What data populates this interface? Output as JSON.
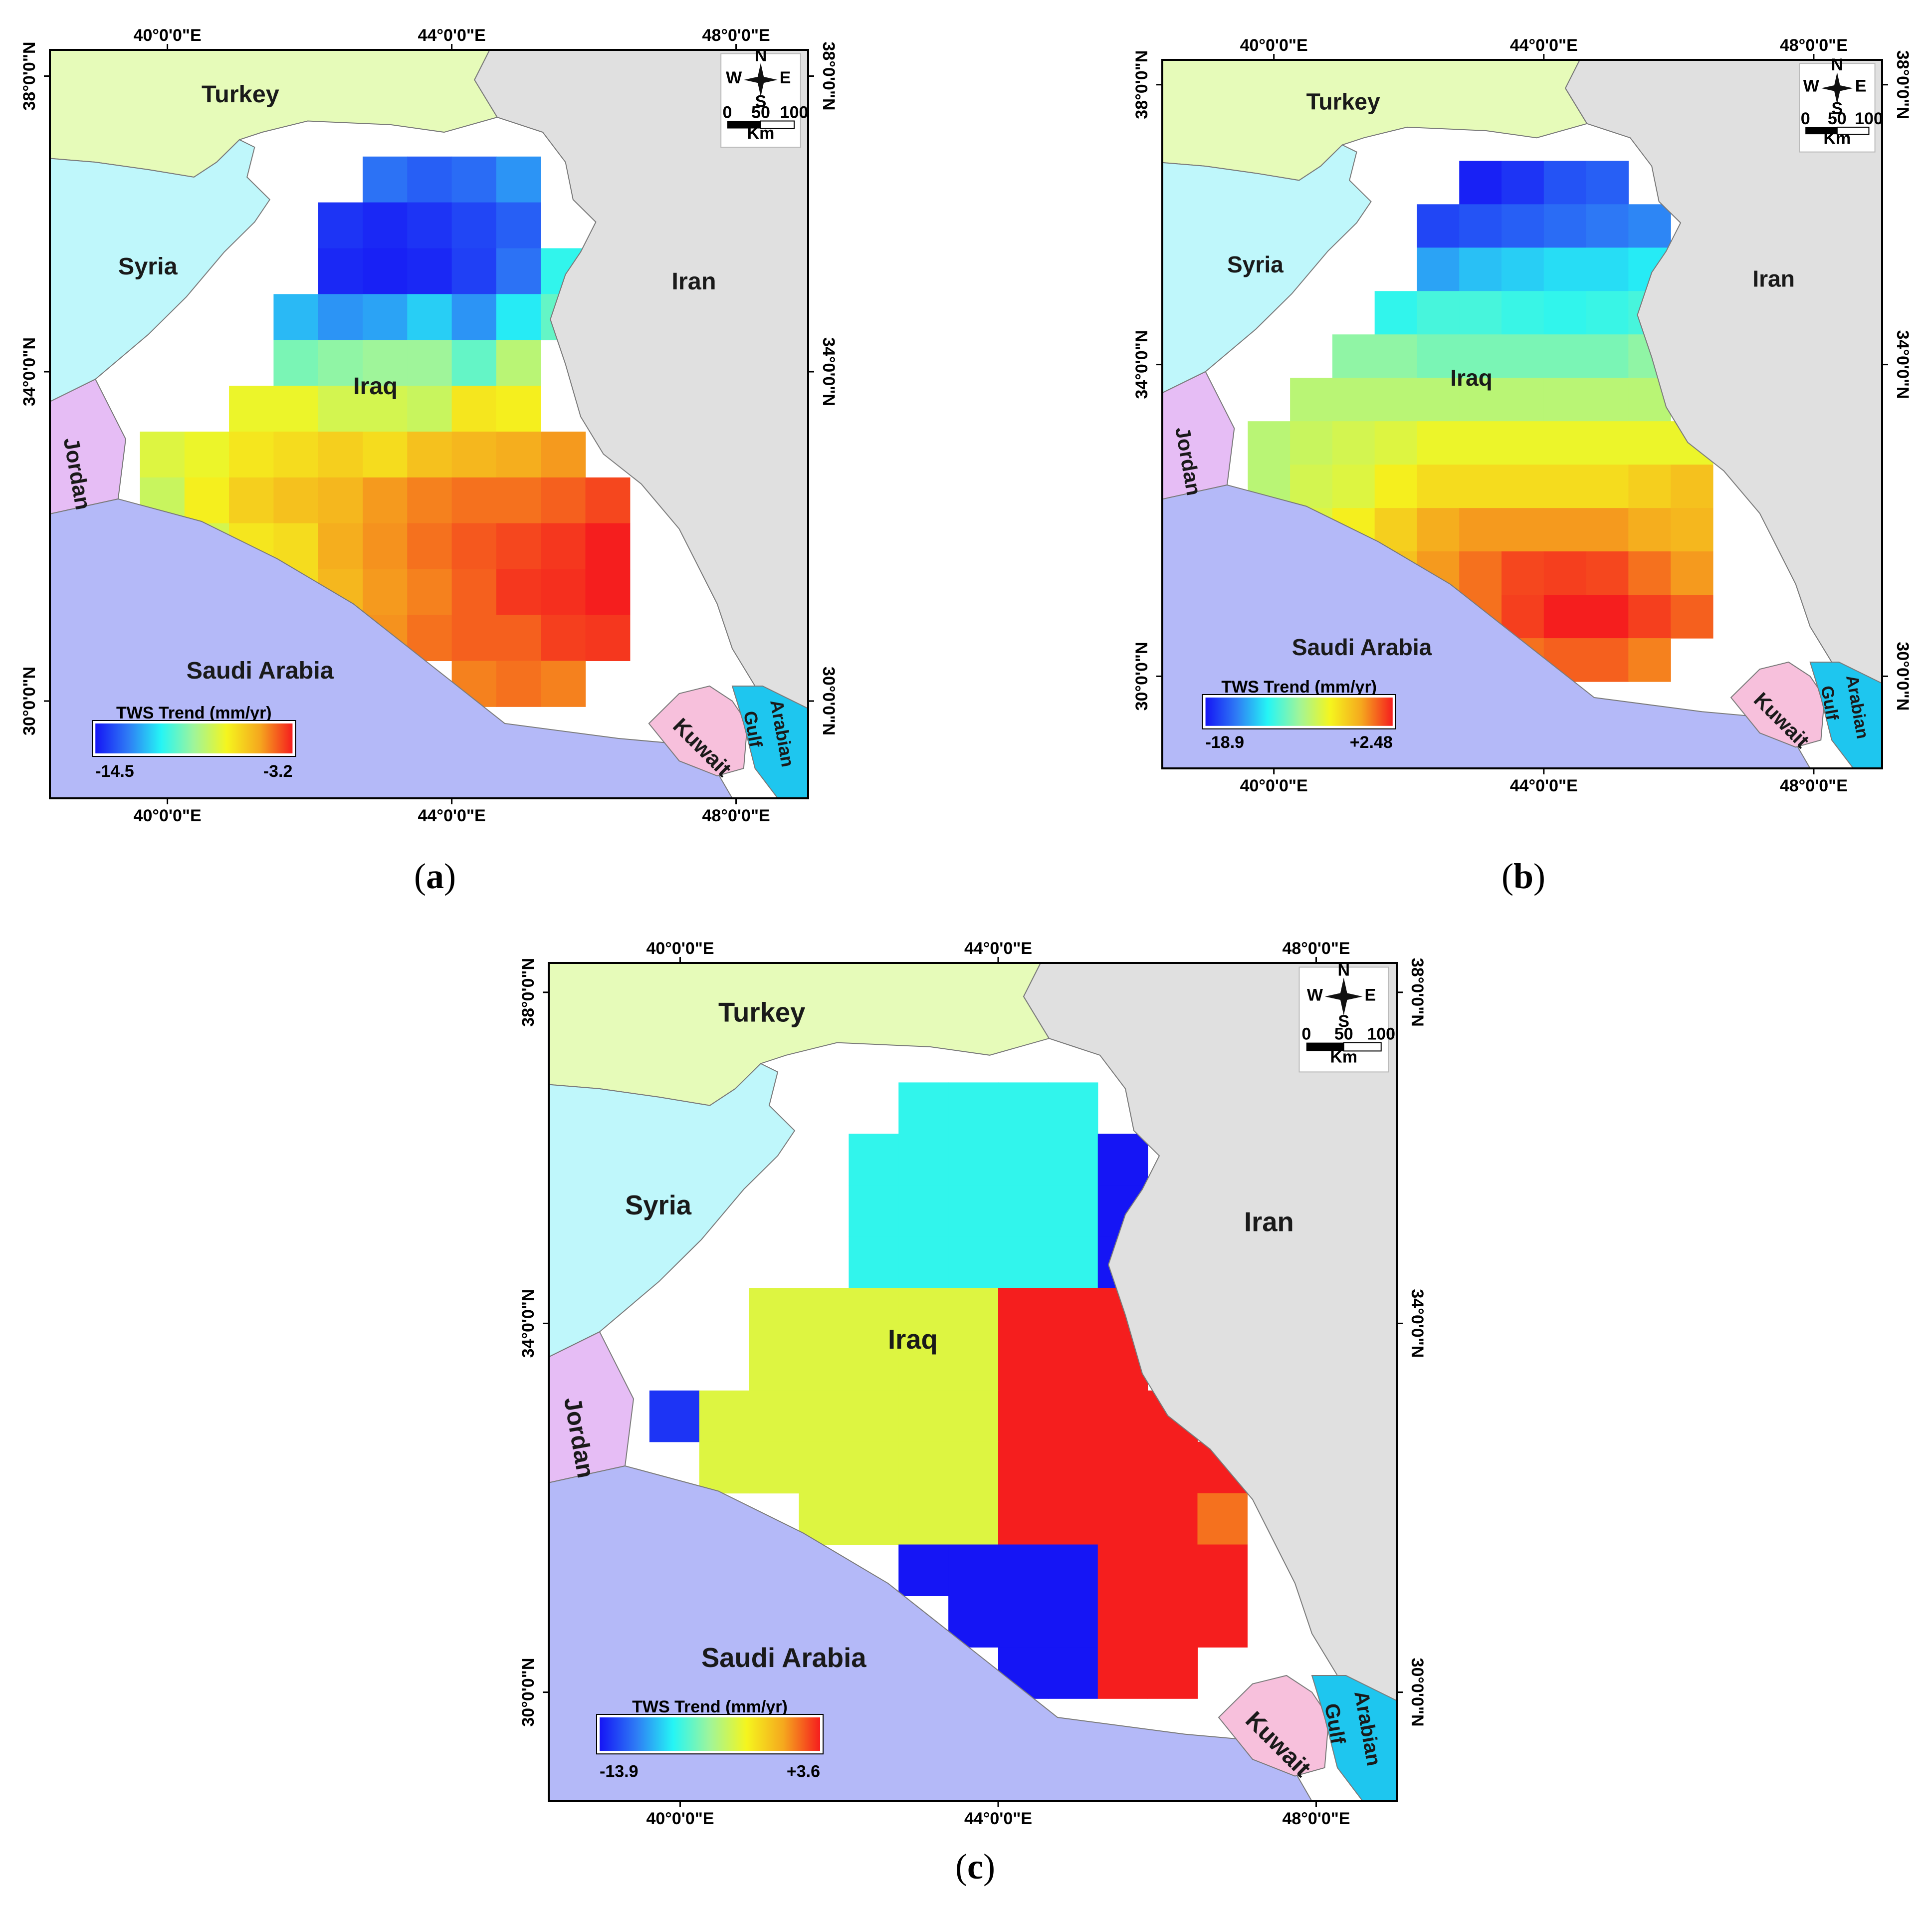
{
  "panels": [
    {
      "label_open": "(",
      "label_letter": "a",
      "label_close": ")",
      "legend": {
        "title": "TWS Trend (mm/yr)",
        "min": "-14.5",
        "max": "-3.2"
      }
    },
    {
      "label_open": "(",
      "label_letter": "b",
      "label_close": ")",
      "legend": {
        "title": "TWS Trend (mm/yr)",
        "min": "-18.9",
        "max": "+2.48"
      }
    },
    {
      "label_open": "(",
      "label_letter": "c",
      "label_close": ")",
      "legend": {
        "title": "TWS Trend (mm/yr)",
        "min": "-13.9",
        "max": "+3.6"
      }
    }
  ],
  "map": {
    "lon_labels": [
      "40°0'0\"E",
      "44°0'0\"E",
      "48°0'0\"E"
    ],
    "lat_labels": [
      "38°0'0\"N",
      "34°0'0\"N",
      "30°0'0\"N"
    ],
    "countries": {
      "turkey": "Turkey",
      "syria": "Syria",
      "iran": "Iran",
      "iraq": "Iraq",
      "jordan": "Jordan",
      "saudi": "Saudi Arabia",
      "kuwait": "Kuwait",
      "gulf_line1": "Arabian",
      "gulf_line2": "Gulf"
    },
    "compass": {
      "n": "N",
      "s": "S",
      "e": "E",
      "w": "W"
    },
    "scale": {
      "ticks": [
        "0",
        "50",
        "100"
      ],
      "unit": "Km"
    }
  },
  "colors": {
    "turkey": "#e6fbb9",
    "syria": "#bff7fb",
    "iran": "#e0e0e0",
    "saudi": "#b4b9f8",
    "jordan": "#e6bdf5",
    "kuwait": "#f7c0dc",
    "gulf": "#1ec6ef",
    "nodata": "#ffffff",
    "ramp": [
      "#1515f5",
      "#2e7cf5",
      "#25f5f5",
      "#9ff59a",
      "#f5f51e",
      "#f5a81e",
      "#f51e1e"
    ]
  },
  "trend_grids": [
    [
      [
        null,
        null,
        null,
        null,
        null,
        null,
        null,
        null,
        null,
        null,
        null,
        null,
        null,
        null,
        null,
        null
      ],
      [
        null,
        null,
        null,
        null,
        null,
        null,
        null,
        null,
        null,
        null,
        null,
        null,
        null,
        null,
        null,
        null
      ],
      [
        null,
        null,
        null,
        null,
        null,
        null,
        0.15,
        0.12,
        0.14,
        0.2,
        null,
        null,
        null,
        null,
        null,
        null
      ],
      [
        null,
        null,
        null,
        null,
        null,
        0.05,
        0.03,
        0.05,
        0.08,
        0.12,
        null,
        null,
        null,
        null,
        null,
        null
      ],
      [
        null,
        null,
        null,
        null,
        null,
        0.03,
        0.02,
        0.03,
        0.07,
        0.15,
        0.35,
        null,
        null,
        null,
        null,
        null
      ],
      [
        null,
        null,
        null,
        null,
        0.25,
        0.2,
        0.22,
        0.28,
        0.2,
        0.32,
        0.42,
        null,
        null,
        null,
        null,
        null
      ],
      [
        null,
        null,
        null,
        null,
        0.45,
        0.48,
        0.5,
        0.5,
        0.42,
        0.55,
        null,
        null,
        null,
        null,
        null,
        null
      ],
      [
        null,
        null,
        null,
        0.65,
        0.65,
        0.6,
        0.6,
        0.58,
        0.7,
        0.68,
        null,
        null,
        null,
        null,
        null,
        null
      ],
      [
        null,
        0.62,
        0.65,
        0.7,
        0.72,
        0.75,
        0.72,
        0.78,
        0.8,
        0.82,
        0.85,
        null,
        null,
        null,
        null,
        null
      ],
      [
        null,
        0.58,
        0.68,
        0.75,
        0.78,
        0.8,
        0.85,
        0.88,
        0.9,
        0.9,
        0.92,
        0.95,
        null,
        null,
        null,
        null
      ],
      [
        null,
        null,
        0.6,
        0.7,
        0.72,
        0.82,
        0.86,
        0.9,
        0.93,
        0.95,
        0.97,
        1.0,
        null,
        null,
        null,
        null
      ],
      [
        null,
        null,
        null,
        null,
        0.72,
        0.8,
        0.85,
        0.88,
        0.92,
        0.97,
        0.98,
        1.0,
        null,
        null,
        null,
        null
      ],
      [
        null,
        null,
        null,
        null,
        null,
        null,
        0.86,
        0.9,
        0.92,
        0.92,
        0.96,
        0.97,
        null,
        null,
        null,
        null
      ],
      [
        null,
        null,
        null,
        null,
        null,
        null,
        null,
        null,
        0.88,
        0.9,
        0.88,
        null,
        null,
        null,
        null,
        null
      ],
      [
        null,
        null,
        null,
        null,
        null,
        null,
        null,
        null,
        null,
        null,
        null,
        null,
        null,
        null,
        null,
        null
      ],
      [
        null,
        null,
        null,
        null,
        null,
        null,
        null,
        null,
        null,
        null,
        null,
        null,
        null,
        null,
        null,
        null
      ]
    ],
    [
      [
        null,
        null,
        null,
        null,
        null,
        null,
        null,
        null,
        null,
        null,
        null,
        null,
        null,
        null,
        null,
        null
      ],
      [
        null,
        null,
        null,
        null,
        null,
        null,
        null,
        null,
        null,
        null,
        null,
        null,
        null,
        null,
        null,
        null
      ],
      [
        null,
        null,
        null,
        null,
        null,
        null,
        0.02,
        0.05,
        0.1,
        0.12,
        null,
        null,
        null,
        null,
        null,
        null
      ],
      [
        null,
        null,
        null,
        null,
        null,
        0.08,
        0.1,
        0.12,
        0.14,
        0.16,
        0.18,
        null,
        null,
        null,
        null,
        null
      ],
      [
        null,
        null,
        null,
        null,
        null,
        0.22,
        0.26,
        0.28,
        0.3,
        0.3,
        0.32,
        null,
        null,
        null,
        null,
        null
      ],
      [
        null,
        null,
        null,
        null,
        0.35,
        0.38,
        0.38,
        0.36,
        0.35,
        0.36,
        0.38,
        null,
        null,
        null,
        null,
        null
      ],
      [
        null,
        null,
        null,
        0.48,
        0.48,
        0.45,
        0.45,
        0.45,
        0.45,
        0.45,
        0.48,
        null,
        null,
        null,
        null,
        null
      ],
      [
        null,
        null,
        0.55,
        0.55,
        0.55,
        0.55,
        0.55,
        0.55,
        0.55,
        0.55,
        0.55,
        null,
        null,
        null,
        null,
        null
      ],
      [
        null,
        0.55,
        0.58,
        0.6,
        0.62,
        0.65,
        0.65,
        0.65,
        0.65,
        0.65,
        0.65,
        0.65,
        null,
        null,
        null,
        null
      ],
      [
        null,
        0.55,
        0.6,
        0.62,
        0.68,
        0.72,
        0.72,
        0.72,
        0.72,
        0.72,
        0.75,
        0.78,
        null,
        null,
        null,
        null
      ],
      [
        null,
        null,
        0.62,
        0.68,
        0.75,
        0.82,
        0.85,
        0.85,
        0.85,
        0.85,
        0.82,
        0.8,
        null,
        null,
        null,
        null
      ],
      [
        null,
        null,
        null,
        null,
        0.78,
        0.85,
        0.9,
        0.95,
        0.96,
        0.95,
        0.9,
        0.85,
        null,
        null,
        null,
        null
      ],
      [
        null,
        null,
        null,
        null,
        null,
        0.82,
        0.9,
        0.96,
        1.0,
        1.0,
        0.96,
        0.92,
        null,
        null,
        null,
        null
      ],
      [
        null,
        null,
        null,
        null,
        null,
        null,
        null,
        0.9,
        0.92,
        0.92,
        0.88,
        null,
        null,
        null,
        null,
        null
      ],
      [
        null,
        null,
        null,
        null,
        null,
        null,
        null,
        null,
        null,
        null,
        null,
        null,
        null,
        null,
        null,
        null
      ],
      [
        null,
        null,
        null,
        null,
        null,
        null,
        null,
        null,
        null,
        null,
        null,
        null,
        null,
        null,
        null,
        null
      ]
    ],
    [
      [
        null,
        null,
        null,
        null,
        null,
        null,
        null,
        null,
        null,
        null,
        null,
        null,
        null,
        null,
        null,
        null
      ],
      [
        null,
        null,
        null,
        null,
        null,
        null,
        null,
        null,
        null,
        null,
        null,
        null,
        null,
        null,
        null,
        null
      ],
      [
        null,
        null,
        null,
        null,
        null,
        null,
        0.35,
        0.35,
        0.35,
        0.35,
        null,
        null,
        null,
        null,
        null,
        null
      ],
      [
        null,
        null,
        null,
        null,
        null,
        0.35,
        0.35,
        0.35,
        0.35,
        0.35,
        0.0,
        null,
        null,
        null,
        null,
        null
      ],
      [
        null,
        null,
        null,
        null,
        null,
        0.35,
        0.35,
        0.35,
        0.35,
        0.35,
        0.0,
        0.0,
        null,
        null,
        null,
        null
      ],
      [
        null,
        null,
        null,
        null,
        null,
        0.35,
        0.35,
        0.35,
        0.35,
        0.35,
        0.0,
        null,
        null,
        null,
        null,
        null
      ],
      [
        null,
        null,
        null,
        0.62,
        0.62,
        0.62,
        0.62,
        0.62,
        1.0,
        1.0,
        1.0,
        null,
        null,
        null,
        null,
        null
      ],
      [
        null,
        null,
        null,
        0.62,
        0.62,
        0.62,
        0.62,
        0.62,
        1.0,
        1.0,
        1.0,
        null,
        null,
        null,
        null,
        null
      ],
      [
        null,
        0.05,
        0.62,
        0.62,
        0.62,
        0.62,
        0.62,
        0.62,
        1.0,
        1.0,
        1.0,
        1.0,
        null,
        null,
        null,
        null
      ],
      [
        null,
        null,
        0.62,
        0.62,
        0.62,
        0.62,
        0.62,
        0.62,
        1.0,
        1.0,
        1.0,
        1.0,
        1.0,
        null,
        null,
        null
      ],
      [
        null,
        null,
        null,
        null,
        0.62,
        0.62,
        0.62,
        0.62,
        1.0,
        1.0,
        1.0,
        1.0,
        0.9,
        null,
        null,
        null
      ],
      [
        null,
        null,
        null,
        null,
        null,
        null,
        0.0,
        0.0,
        0.0,
        0.0,
        1.0,
        1.0,
        1.0,
        null,
        null,
        null
      ],
      [
        null,
        null,
        null,
        null,
        null,
        null,
        null,
        0.0,
        0.0,
        0.0,
        1.0,
        1.0,
        1.0,
        null,
        null,
        null
      ],
      [
        null,
        null,
        null,
        null,
        null,
        null,
        null,
        null,
        0.0,
        0.0,
        1.0,
        1.0,
        null,
        null,
        null,
        null
      ],
      [
        null,
        null,
        null,
        null,
        null,
        null,
        null,
        null,
        null,
        null,
        null,
        null,
        null,
        null,
        null,
        null
      ],
      [
        null,
        null,
        null,
        null,
        null,
        null,
        null,
        null,
        null,
        null,
        null,
        null,
        null,
        null,
        null,
        null
      ]
    ]
  ]
}
